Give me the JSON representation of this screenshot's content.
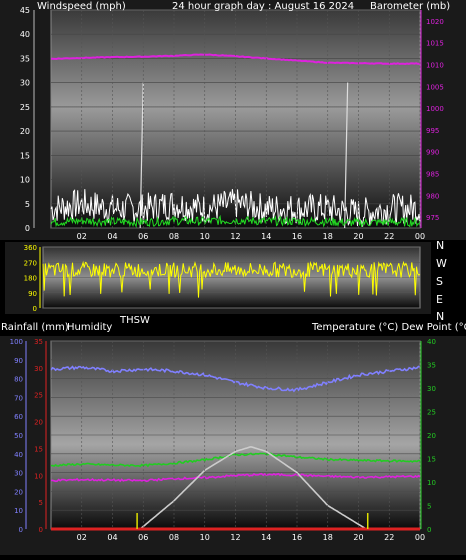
{
  "colors": {
    "windspeed": "#ffffff",
    "wind_gust_low": "#22dd22",
    "barometer": "#dd22dd",
    "direction": "#ffff00",
    "humidity": "#8080ff",
    "rainfall": "#dd2222",
    "temperature": "#22cc22",
    "dew_point": "#dd22dd",
    "solar": "#cccccc",
    "label": "#ffffff",
    "frame": "#777777"
  },
  "top": {
    "left_title": "Windspeed (mph)",
    "center_title": "24 hour graph day : August 16 2024",
    "right_title": "Barometer (mb)"
  },
  "middle": {
    "left_label": "Rainfall (mm)",
    "humidity_label": "Humidity",
    "thsw_label": "THSW",
    "right_label": "Temperature (°C) Dew Point (°C)"
  },
  "compass": [
    "N",
    "W",
    "S",
    "E",
    "N"
  ],
  "chart_data": [
    {
      "type": "line",
      "title": "24 hour graph day : August 16 2024",
      "xlabel": "",
      "ylabel": "Windspeed (mph)",
      "y2label": "Barometer (mb)",
      "x_ticks": [
        "02",
        "04",
        "06",
        "08",
        "10",
        "12",
        "14",
        "16",
        "18",
        "20",
        "22",
        "00"
      ],
      "xlim": [
        0,
        24
      ],
      "ylim": [
        0,
        45
      ],
      "y_ticks": [
        0,
        5,
        10,
        15,
        20,
        25,
        30,
        35,
        40,
        45
      ],
      "y2lim": [
        972.5,
        1022.5
      ],
      "y2_ticks": [
        975,
        980,
        985,
        990,
        995,
        1000,
        1005,
        1010,
        1015,
        1020
      ],
      "grid": true,
      "series": [
        {
          "name": "Windspeed (mph)",
          "axis": "left",
          "style": "noisy",
          "x": [
            0,
            2,
            4,
            6,
            8,
            10,
            12,
            14,
            16,
            18,
            20,
            22,
            24
          ],
          "values": [
            4,
            5,
            4,
            4,
            5,
            4,
            5,
            4,
            4,
            4,
            3,
            4,
            4
          ],
          "noise": 3.2
        },
        {
          "name": "",
          "axis": "left",
          "style": "noisy",
          "x": [
            0,
            2,
            4,
            6,
            8,
            10,
            12,
            14,
            16,
            18,
            20,
            22,
            24
          ],
          "values": [
            1.2,
            1.5,
            1.3,
            1.2,
            1.5,
            1.4,
            1.6,
            1.4,
            1.4,
            1.3,
            1.1,
            1.2,
            1.2
          ],
          "noise": 0.9
        },
        {
          "name": "Barometer (mb)",
          "axis": "right",
          "style": "smooth",
          "x": [
            0,
            2,
            4,
            6,
            8,
            10,
            12,
            14,
            16,
            18,
            20,
            22,
            24
          ],
          "values": [
            1011.3,
            1011.5,
            1011.7,
            1011.8,
            1012.0,
            1012.3,
            1011.9,
            1011.4,
            1010.9,
            1010.4,
            1010.3,
            1010.2,
            1010.2
          ]
        }
      ],
      "spikes": [
        {
          "x": 5.8,
          "top": 30
        },
        {
          "x": 19.1,
          "top": 30
        }
      ]
    },
    {
      "type": "scatter",
      "title": "",
      "ylabel": "",
      "ylim": [
        0,
        360
      ],
      "y_ticks": [
        0,
        90,
        180,
        270,
        360
      ],
      "grid": true,
      "series": [
        {
          "name": "",
          "style": "noisy",
          "x": [
            0,
            6,
            12,
            18,
            24
          ],
          "values": [
            225,
            225,
            225,
            225,
            225
          ],
          "noise": 45
        }
      ]
    },
    {
      "type": "line",
      "title": "",
      "x_ticks": [
        "02",
        "04",
        "06",
        "08",
        "10",
        "12",
        "14",
        "16",
        "18",
        "20",
        "22",
        "00"
      ],
      "xlim": [
        0,
        24
      ],
      "y_humidity_lim": [
        0,
        100
      ],
      "y_humidity_ticks": [
        0,
        10,
        20,
        30,
        40,
        50,
        60,
        70,
        80,
        90,
        100
      ],
      "y_rain_lim": [
        0,
        35
      ],
      "y_rain_ticks": [
        0,
        5,
        10,
        15,
        20,
        25,
        30,
        35
      ],
      "y_temp_lim": [
        0,
        40
      ],
      "y_temp_ticks": [
        0,
        5,
        10,
        15,
        20,
        25,
        30,
        35,
        40
      ],
      "grid": true,
      "series": [
        {
          "name": "Humidity",
          "axis": "humidity",
          "style": "smooth",
          "x": [
            0,
            2,
            4,
            6,
            8,
            10,
            12,
            14,
            16,
            18,
            20,
            22,
            24
          ],
          "values": [
            85,
            86,
            84,
            85,
            84,
            82,
            78,
            75,
            74,
            78,
            82,
            84,
            86
          ]
        },
        {
          "name": "Temperature (°C)",
          "axis": "temp",
          "style": "smooth",
          "x": [
            0,
            2,
            4,
            6,
            8,
            10,
            12,
            14,
            16,
            18,
            20,
            22,
            24
          ],
          "values": [
            13.5,
            13.8,
            13.6,
            13.5,
            14.0,
            14.7,
            15.8,
            16.0,
            15.3,
            14.8,
            14.6,
            14.5,
            14.4
          ]
        },
        {
          "name": "Dew Point (°C)",
          "axis": "temp",
          "style": "smooth",
          "x": [
            0,
            2,
            4,
            6,
            8,
            10,
            12,
            14,
            16,
            18,
            20,
            22,
            24
          ],
          "values": [
            10.3,
            10.5,
            10.4,
            10.3,
            10.7,
            10.9,
            11.4,
            11.6,
            11.5,
            11.2,
            11.0,
            11.1,
            11.2
          ]
        },
        {
          "name": "THSW",
          "axis": "temp",
          "style": "smooth",
          "x": [
            0,
            2,
            4,
            5.8,
            8,
            10,
            12,
            13,
            14,
            16,
            18,
            20.5,
            24
          ],
          "values": [
            0,
            0,
            0,
            0,
            6,
            12.5,
            16.5,
            17.5,
            16.5,
            12,
            5,
            0,
            0
          ]
        },
        {
          "name": "Rainfall (mm)",
          "axis": "rain",
          "style": "smooth",
          "x": [
            0,
            24
          ],
          "values": [
            0,
            0
          ]
        }
      ],
      "events": [
        {
          "x": 5.6
        },
        {
          "x": 20.6
        }
      ]
    }
  ]
}
